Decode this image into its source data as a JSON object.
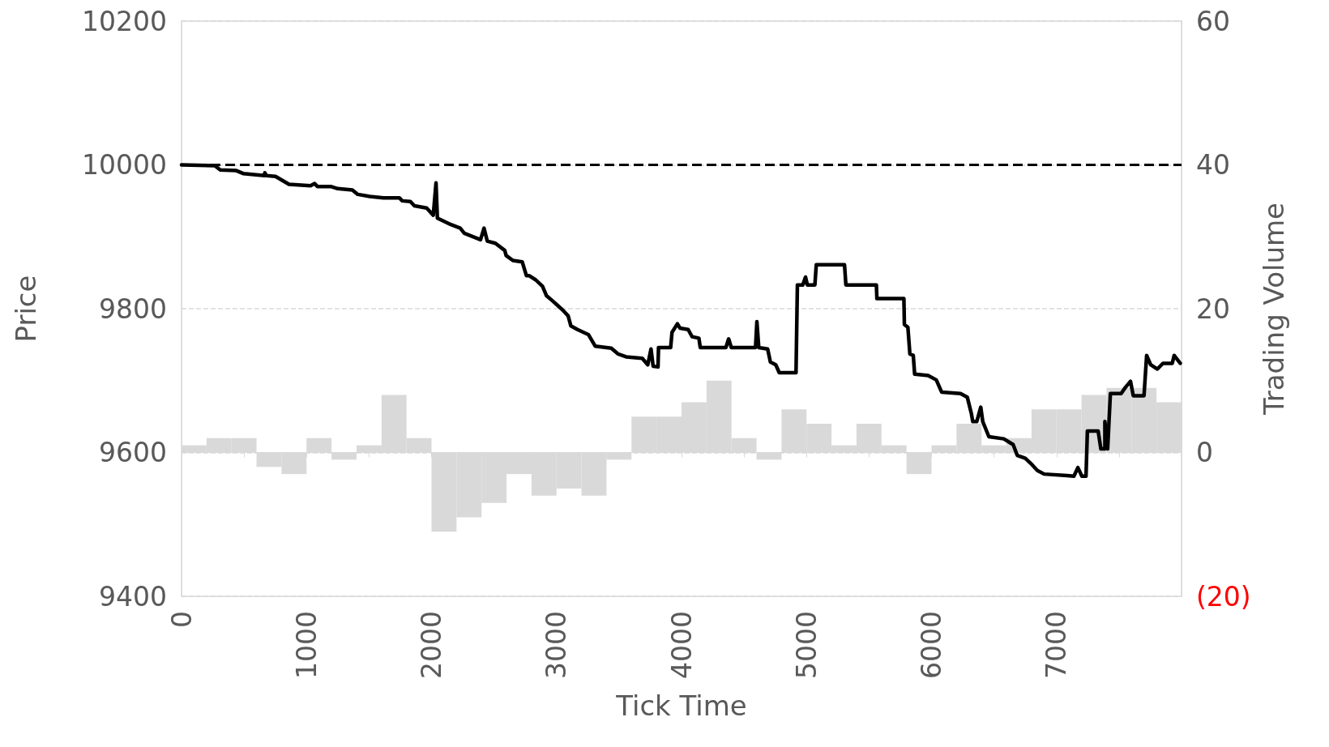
{
  "chart_data": {
    "type": "line",
    "xlabel": "Tick Time",
    "ylabel": "Price",
    "y2label": "Trading Volume",
    "xlim": [
      0,
      8000
    ],
    "xticks": [
      0,
      {
        "value": 500,
        "label": null
      },
      1000,
      {
        "value": 1500,
        "label": null
      },
      2000,
      {
        "value": 2500,
        "label": null
      },
      3000,
      {
        "value": 3500,
        "label": null
      },
      4000,
      {
        "value": 4500,
        "label": null
      },
      5000,
      {
        "value": 5500,
        "label": null
      },
      6000,
      {
        "value": 6500,
        "label": null
      },
      7000,
      {
        "value": 7500,
        "label": null
      },
      {
        "value": 8000,
        "label": null
      }
    ],
    "ylim": [
      9400,
      10200
    ],
    "yticks": [
      9400,
      9600,
      9800,
      10000,
      10200
    ],
    "y2lim": [
      -20,
      60
    ],
    "y2ticks": [
      {
        "value": -20,
        "label": "(20)"
      },
      0,
      20,
      40,
      60
    ],
    "grid": "y",
    "marker": "none",
    "ref_lines": [
      {
        "axis": "y",
        "value": 10000,
        "color": "#000000",
        "line_style": "dashed"
      }
    ],
    "series": [
      {
        "type": "bar",
        "axis": "y2",
        "color": "#d9d9d9",
        "x": [
          100,
          300,
          500,
          700,
          900,
          1100,
          1300,
          1500,
          1700,
          1900,
          2100,
          2300,
          2500,
          2700,
          2900,
          3100,
          3300,
          3500,
          3700,
          3900,
          4100,
          4300,
          4500,
          4700,
          4900,
          5100,
          5300,
          5500,
          5700,
          5900,
          6100,
          6300,
          6500,
          6700,
          6900,
          7100,
          7300,
          7500,
          7700,
          7900
        ],
        "values": [
          1,
          2,
          2,
          -2,
          -3,
          2,
          -1,
          1,
          8,
          2,
          -11,
          -9,
          -7,
          -3,
          -6,
          -5,
          -6,
          -1,
          5,
          5,
          7,
          10,
          2,
          -1,
          6,
          4,
          1,
          4,
          1,
          -3,
          1,
          4,
          1,
          2,
          6,
          6,
          8,
          9,
          9,
          7
        ]
      },
      {
        "color": "#000000",
        "line_style": "solid",
        "x": [
          0,
          267,
          310,
          439,
          493,
          666,
          666,
          680,
          752,
          860,
          1032,
          1065,
          1087,
          1194,
          1249,
          1367,
          1410,
          1507,
          1615,
          1744,
          1766,
          1831,
          1863,
          1961,
          2014,
          2036,
          2047,
          2155,
          2230,
          2262,
          2392,
          2420,
          2446,
          2511,
          2586,
          2597,
          2651,
          2726,
          2759,
          2780,
          2834,
          2888,
          2920,
          2974,
          3050,
          3093,
          3115,
          3168,
          3255,
          3309,
          3438,
          3492,
          3557,
          3686,
          3730,
          3756,
          3773,
          3812,
          3816,
          3913,
          3924,
          3967,
          3988,
          4053,
          4085,
          4139,
          4150,
          4355,
          4377,
          4398,
          4592,
          4603,
          4618,
          4689,
          4711,
          4754,
          4782,
          4916,
          4927,
          4970,
          4992,
          5007,
          5067,
          5078,
          5304,
          5315,
          5559,
          5563,
          5779,
          5783,
          5811,
          5827,
          5854,
          5865,
          5973,
          6038,
          6081,
          6232,
          6286,
          6319,
          6330,
          6362,
          6394,
          6410,
          6459,
          6578,
          6653,
          6686,
          6750,
          6793,
          6847,
          6901,
          7085,
          7139,
          7171,
          7203,
          7236,
          7247,
          7333,
          7355,
          7387,
          7387,
          7409,
          7431,
          7517,
          7549,
          7592,
          7614,
          7700,
          7721,
          7753,
          7807,
          7851,
          7926,
          7941,
          7990
        ],
        "values": [
          10000,
          9999,
          9993,
          9992,
          9988,
          9985,
          9989,
          9985,
          9984,
          9973,
          9971,
          9974,
          9970,
          9970,
          9967,
          9965,
          9959,
          9956,
          9954,
          9954,
          9950,
          9949,
          9943,
          9940,
          9930,
          9975,
          9926,
          9917,
          9912,
          9905,
          9896,
          9912,
          9894,
          9891,
          9881,
          9874,
          9867,
          9865,
          9846,
          9846,
          9840,
          9831,
          9818,
          9810,
          9798,
          9790,
          9776,
          9771,
          9764,
          9748,
          9745,
          9737,
          9733,
          9731,
          9722,
          9744,
          9720,
          9719,
          9746,
          9746,
          9767,
          9779,
          9773,
          9771,
          9761,
          9759,
          9746,
          9746,
          9758,
          9746,
          9746,
          9782,
          9746,
          9744,
          9726,
          9722,
          9711,
          9711,
          9833,
          9833,
          9844,
          9833,
          9833,
          9861,
          9861,
          9833,
          9833,
          9814,
          9814,
          9778,
          9774,
          9737,
          9735,
          9709,
          9707,
          9701,
          9684,
          9682,
          9677,
          9654,
          9643,
          9643,
          9663,
          9643,
          9622,
          9619,
          9611,
          9596,
          9592,
          9585,
          9575,
          9570,
          9568,
          9567,
          9579,
          9567,
          9567,
          9630,
          9630,
          9605,
          9605,
          9643,
          9605,
          9682,
          9682,
          9690,
          9699,
          9679,
          9679,
          9735,
          9722,
          9716,
          9724,
          9724,
          9735,
          9724
        ]
      }
    ]
  }
}
